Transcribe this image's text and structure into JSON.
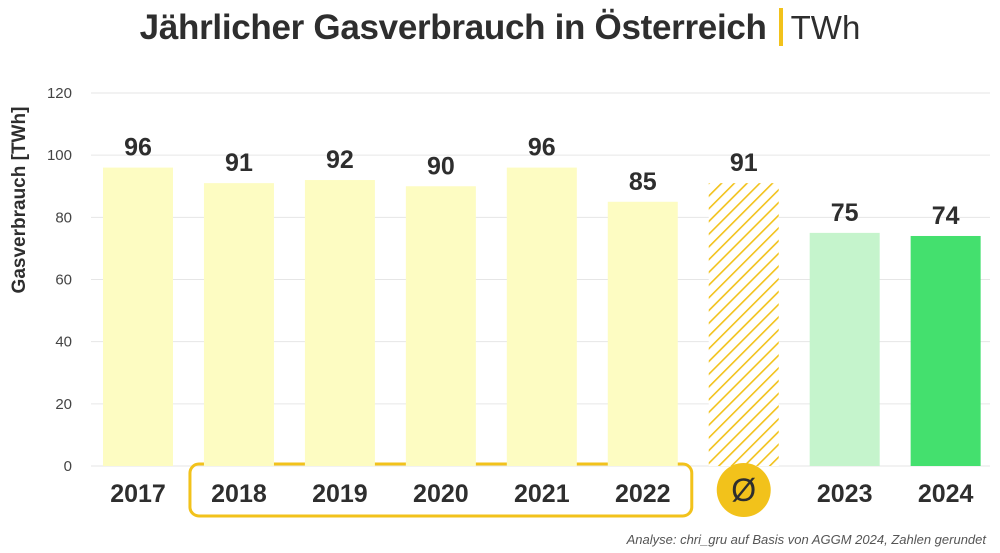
{
  "title": "Jährlicher Gasverbrauch in Österreich",
  "unit": "TWh",
  "source": "Analyse: chri_gru auf Basis von AGGM 2024, Zahlen gerundet",
  "average_symbol": "Ø",
  "colors": {
    "pre_crisis": "#fdfcc2",
    "average": "#f2c21b",
    "year_2023": "#c5f4cc",
    "year_2024": "#44e06e",
    "highlight_box": "#f2c21b",
    "text": "#2e2e2e",
    "grid": "#e6e6e6"
  },
  "chart_data": {
    "type": "bar",
    "categories": [
      "2017",
      "2018",
      "2019",
      "2020",
      "2021",
      "2022",
      "Ø",
      "2023",
      "2024"
    ],
    "values": [
      96,
      91,
      92,
      90,
      96,
      85,
      91,
      75,
      74
    ],
    "styles": [
      "pre",
      "pre",
      "pre",
      "pre",
      "pre",
      "pre",
      "hatched",
      "light-green",
      "green"
    ],
    "ylabel": "Gasverbrauch [TWh]",
    "ylim": [
      0,
      120
    ],
    "yticks": [
      0,
      20,
      40,
      60,
      80,
      100,
      120
    ],
    "grid": true,
    "legend": "none",
    "average_range": [
      "2018",
      "2022"
    ]
  }
}
